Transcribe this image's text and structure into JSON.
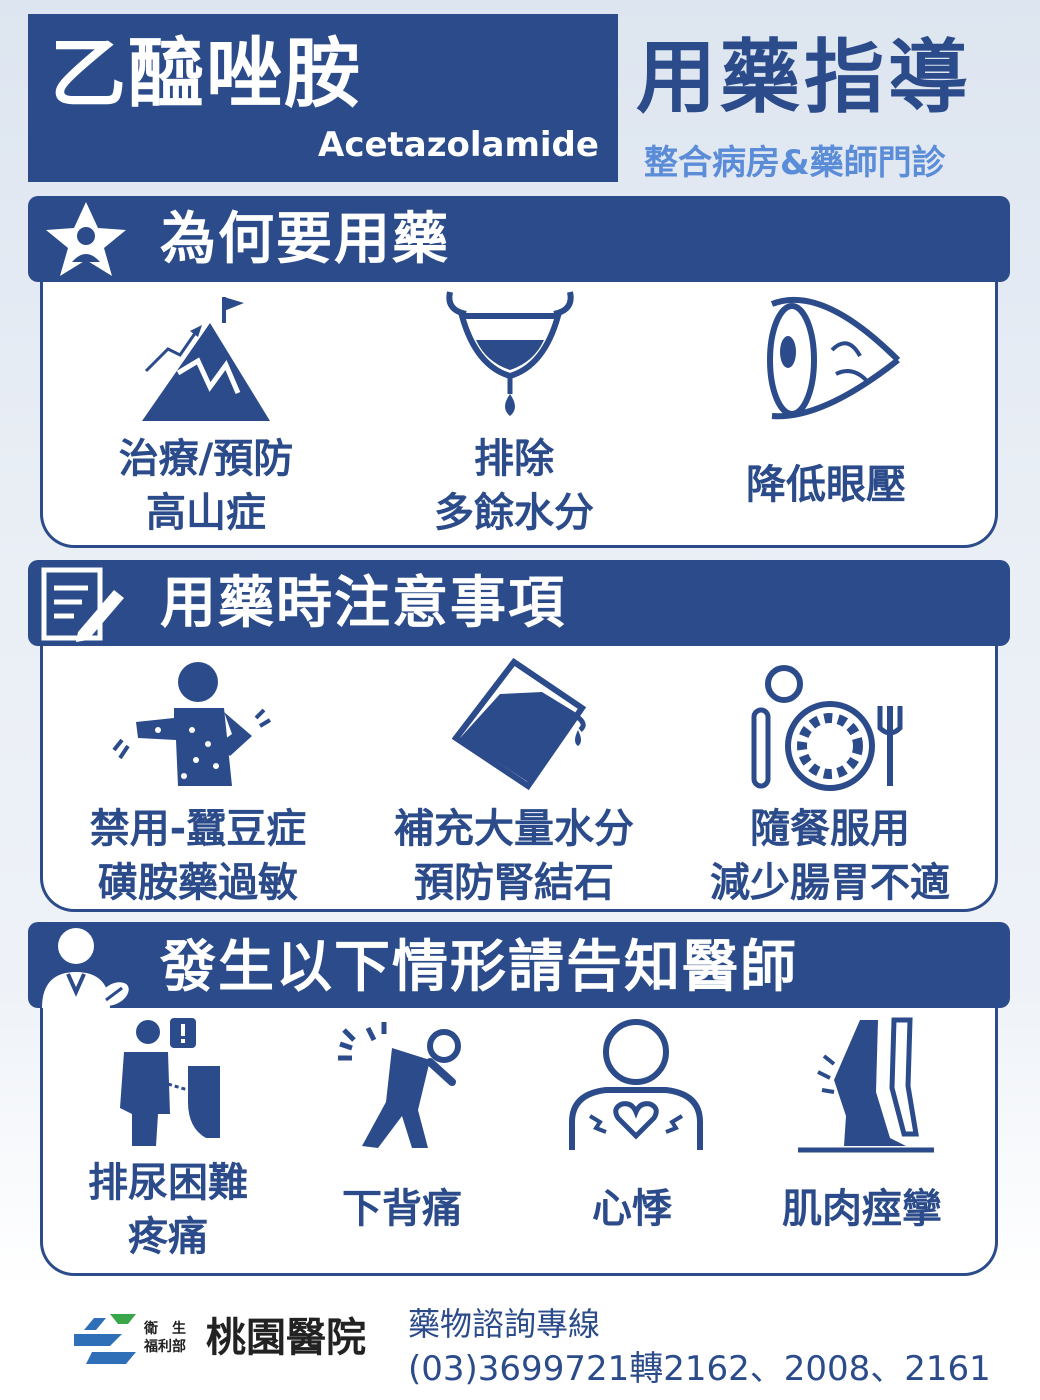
{
  "header": {
    "drug_name": "乙醯唑胺",
    "drug_name_en": "Acetazolamide",
    "guide_title": "用藥指導",
    "guide_subtitle": "整合病房&藥師門診"
  },
  "sections": {
    "why": {
      "title": "為何要用藥",
      "icon": "star-person-icon",
      "items": [
        {
          "line1": "治療/預防",
          "line2": "高山症",
          "icon": "mountain-icon"
        },
        {
          "line1": "排除",
          "line2": "多餘水分",
          "icon": "bladder-drop-icon"
        },
        {
          "line1": "降低眼壓",
          "line2": "",
          "icon": "eye-icon"
        }
      ]
    },
    "cautions": {
      "title": "用藥時注意事項",
      "icon": "notepad-icon",
      "items": [
        {
          "line1": "禁用-蠶豆症",
          "line2": "磺胺藥過敏",
          "icon": "rash-person-icon"
        },
        {
          "line1": "補充大量水分",
          "line2": "預防腎結石",
          "icon": "water-glass-icon"
        },
        {
          "line1": "隨餐服用",
          "line2": "減少腸胃不適",
          "icon": "plate-utensils-icon"
        }
      ]
    },
    "tell_doctor": {
      "title": "發生以下情形請告知醫師",
      "icon": "doctor-icon",
      "items": [
        {
          "line1": "排尿困難",
          "line2": "疼痛",
          "icon": "urinal-icon"
        },
        {
          "line1": "下背痛",
          "line2": "",
          "icon": "back-pain-icon"
        },
        {
          "line1": "心悸",
          "line2": "",
          "icon": "heart-chest-icon"
        },
        {
          "line1": "肌肉痙攣",
          "line2": "",
          "icon": "leg-cramp-icon"
        }
      ]
    }
  },
  "footer": {
    "ministry_top": "衛　生",
    "ministry_bottom": "福利部",
    "hospital_name": "桃園醫院",
    "hotline_label": "藥物諮詢專線",
    "hotline_number": "(03)3699721轉2162、2008、2161"
  },
  "colors": {
    "primary": "#2b4b8a",
    "accent": "#5a8cd8",
    "logo_green": "#3aa64a",
    "logo_blue": "#2f6fb7"
  }
}
